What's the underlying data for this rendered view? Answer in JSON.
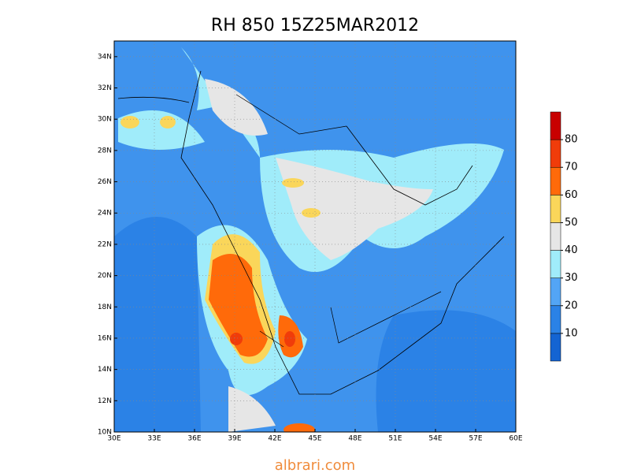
{
  "map": {
    "title": "RH 850  15Z25MAR2012",
    "lon_range": [
      30,
      60
    ],
    "lat_range": [
      10,
      35
    ],
    "lon_ticks": [
      {
        "value": 30,
        "label": "30E"
      },
      {
        "value": 33,
        "label": "33E"
      },
      {
        "value": 36,
        "label": "36E"
      },
      {
        "value": 39,
        "label": "39E"
      },
      {
        "value": 42,
        "label": "42E"
      },
      {
        "value": 45,
        "label": "45E"
      },
      {
        "value": 48,
        "label": "48E"
      },
      {
        "value": 51,
        "label": "51E"
      },
      {
        "value": 54,
        "label": "54E"
      },
      {
        "value": 57,
        "label": "57E"
      },
      {
        "value": 60,
        "label": "60E"
      }
    ],
    "lat_ticks": [
      {
        "value": 10,
        "label": "10N"
      },
      {
        "value": 12,
        "label": "12N"
      },
      {
        "value": 14,
        "label": "14N"
      },
      {
        "value": 16,
        "label": "16N"
      },
      {
        "value": 18,
        "label": "18N"
      },
      {
        "value": 20,
        "label": "20N"
      },
      {
        "value": 22,
        "label": "22N"
      },
      {
        "value": 24,
        "label": "24N"
      },
      {
        "value": 26,
        "label": "26N"
      },
      {
        "value": 28,
        "label": "28N"
      },
      {
        "value": 30,
        "label": "30N"
      },
      {
        "value": 32,
        "label": "32N"
      },
      {
        "value": 34,
        "label": "34N"
      }
    ],
    "colorbar": {
      "range": [
        0,
        90
      ],
      "ticks": [
        10,
        20,
        30,
        40,
        50,
        60,
        70,
        80
      ],
      "colors": [
        "#1464d2",
        "#2b82e6",
        "#53a5f5",
        "#a0ecfa",
        "#e6e6e6",
        "#fad65a",
        "#ff6a0a",
        "#f03c0a",
        "#c80000"
      ]
    },
    "watermark": "albrari.com"
  }
}
